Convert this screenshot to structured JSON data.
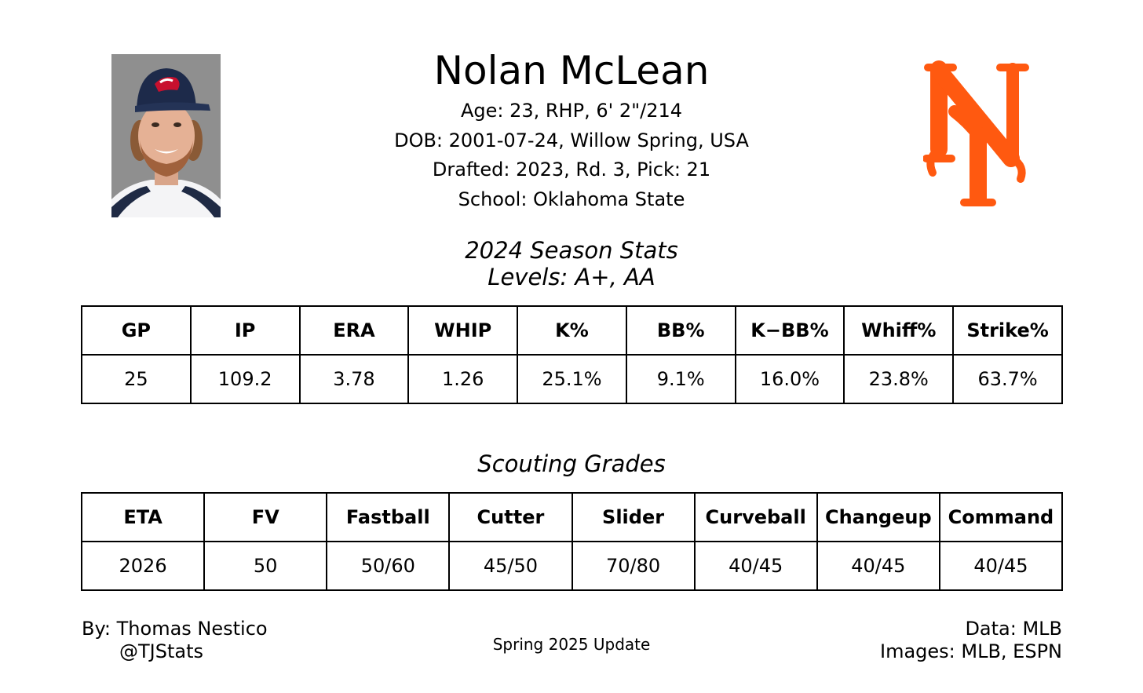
{
  "player": {
    "name": "Nolan McLean",
    "age_line": "Age: 23, RHP, 6' 2\"/214",
    "dob_line": "DOB: 2001-07-24, Willow Spring, USA",
    "draft_line": "Drafted: 2023, Rd. 3, Pick: 21",
    "school_line": "School: Oklahoma State",
    "photo_icon": "player-headshot-photo",
    "logo_icon": "ny-mets-logo",
    "logo_color": "#ff5910"
  },
  "stats": {
    "title": "2024 Season Stats",
    "levels": "Levels: A+, AA",
    "headers": [
      "GP",
      "IP",
      "ERA",
      "WHIP",
      "K%",
      "BB%",
      "K−BB%",
      "Whiff%",
      "Strike%"
    ],
    "values": [
      "25",
      "109.2",
      "3.78",
      "1.26",
      "25.1%",
      "9.1%",
      "16.0%",
      "23.8%",
      "63.7%"
    ]
  },
  "grades": {
    "title": "Scouting Grades",
    "headers": [
      "ETA",
      "FV",
      "Fastball",
      "Cutter",
      "Slider",
      "Curveball",
      "Changeup",
      "Command"
    ],
    "values": [
      "2026",
      "50",
      "50/60",
      "45/50",
      "70/80",
      "40/45",
      "40/45",
      "40/45"
    ]
  },
  "footer": {
    "author": "By: Thomas Nestico",
    "handle": "@TJStats",
    "update": "Spring 2025 Update",
    "data_source": "Data: MLB",
    "image_source": "Images: MLB, ESPN"
  }
}
